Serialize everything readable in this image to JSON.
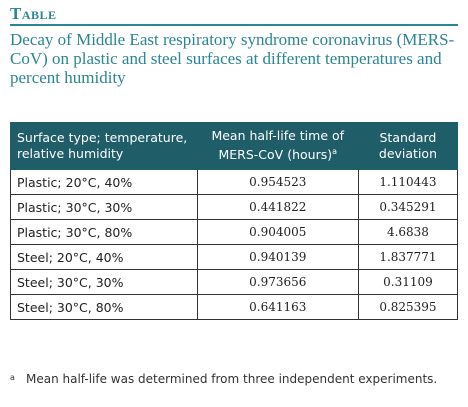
{
  "header": {
    "label": "Table",
    "title": "Decay of Middle East respiratory syndrome coronavirus (MERS-CoV) on plastic and steel surfaces at different temperatures and percent humidity"
  },
  "table": {
    "columns": [
      {
        "text": "Surface type; temperature, relative humidity"
      },
      {
        "text": "Mean half-life time of MERS-CoV (hours)",
        "note": "a"
      },
      {
        "text": "Standard deviation"
      }
    ],
    "rows": [
      [
        "Plastic; 20°C, 40%",
        "0.954523",
        "1.110443"
      ],
      [
        "Plastic; 30°C, 30%",
        "0.441822",
        "0.345291"
      ],
      [
        "Plastic; 30°C, 80%",
        "0.904005",
        "4.6838"
      ],
      [
        "Steel; 20°C, 40%",
        "0.940139",
        "1.837771"
      ],
      [
        "Steel; 30°C, 30%",
        "0.973656",
        "0.31109"
      ],
      [
        "Steel; 30°C, 80%",
        "0.641163",
        "0.825395"
      ]
    ]
  },
  "footnote": {
    "marker": "a",
    "text": "Mean half-life was determined from three independent experiments."
  }
}
